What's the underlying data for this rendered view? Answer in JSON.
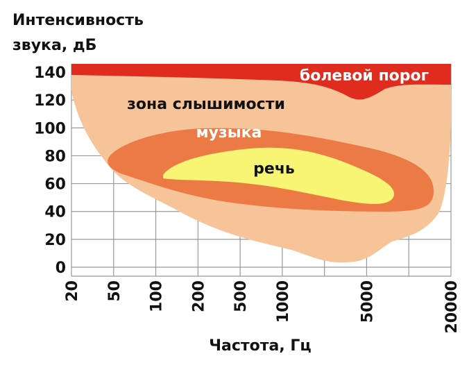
{
  "title_lines": [
    "Интенсивность",
    "звука, дБ"
  ],
  "y_axis": {
    "ticks": [
      0,
      20,
      40,
      60,
      80,
      100,
      120,
      140
    ]
  },
  "x_axis": {
    "label": "Частота, Гц",
    "ticks": [
      "20",
      "50",
      "100",
      "200",
      "500",
      "1000",
      null,
      "5000",
      null,
      "20000"
    ]
  },
  "zones": [
    "болевой порог",
    "зона слышимости",
    "музыка",
    "речь"
  ]
}
